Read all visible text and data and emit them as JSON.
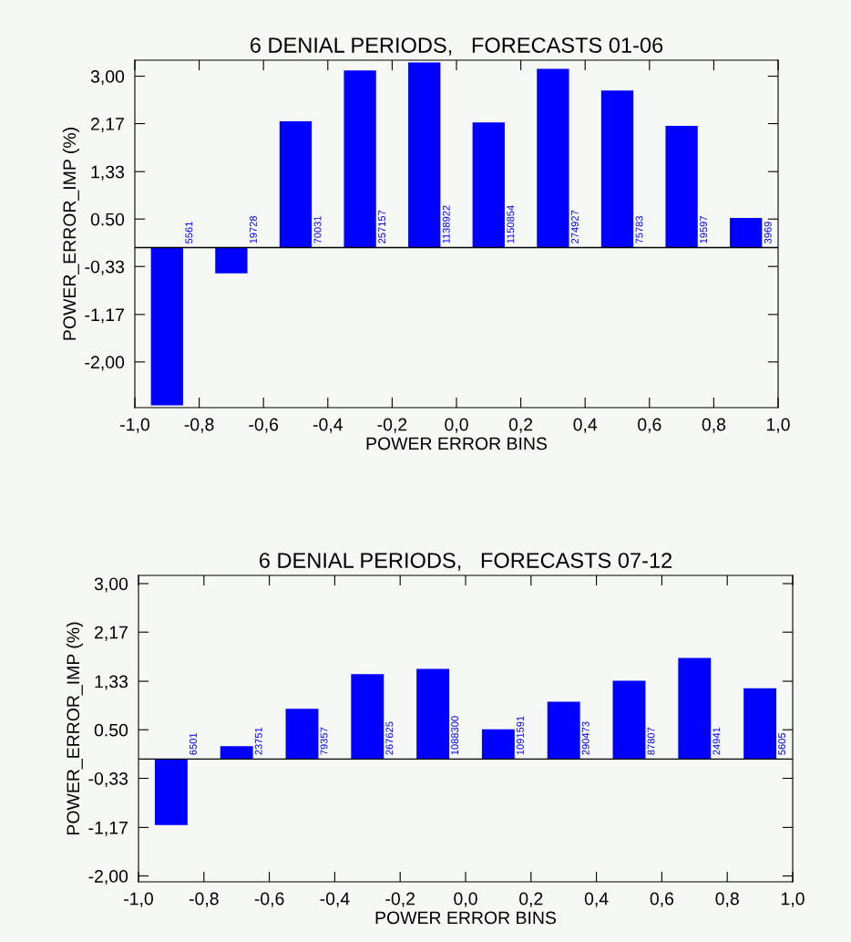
{
  "chart_data": [
    {
      "type": "bar",
      "title": "6 DENIAL PERIODS,   FORECASTS 01-06",
      "xlabel": "POWER ERROR BINS",
      "ylabel": "POWER_ERROR_IMP (%)",
      "x": [
        -0.9,
        -0.7,
        -0.5,
        -0.3,
        -0.1,
        0.1,
        0.3,
        0.5,
        0.7,
        0.9
      ],
      "values": [
        -2.76,
        -0.45,
        2.21,
        3.1,
        3.24,
        2.19,
        3.13,
        2.75,
        2.13,
        0.52
      ],
      "color": "#0000ff",
      "xlim": [
        -1.0,
        1.0
      ],
      "xticks": [
        {
          "value": -1.0,
          "label": "-1,0"
        },
        {
          "value": -0.8,
          "label": "-0,8"
        },
        {
          "value": -0.6,
          "label": "-0,6"
        },
        {
          "value": -0.4,
          "label": "-0,4"
        },
        {
          "value": -0.2,
          "label": "-0,2"
        },
        {
          "value": 0.0,
          "label": "0,0"
        },
        {
          "value": 0.2,
          "label": "0,2"
        },
        {
          "value": 0.4,
          "label": "0,4"
        },
        {
          "value": 0.6,
          "label": "0,6"
        },
        {
          "value": 0.8,
          "label": "0,8"
        },
        {
          "value": 1.0,
          "label": "1,0"
        }
      ],
      "ylim": [
        -2.8,
        3.28
      ],
      "yticks": [
        {
          "value": -2.0,
          "label": "-2,00"
        },
        {
          "value": -1.17,
          "label": "-1,17"
        },
        {
          "value": -0.33,
          "label": "-0,33"
        },
        {
          "value": 0.5,
          "label": "0.50"
        },
        {
          "value": 1.33,
          "label": "1,33"
        },
        {
          "value": 2.17,
          "label": "2,17"
        },
        {
          "value": 3.0,
          "label": "3,00"
        }
      ],
      "ref_lines": [
        {
          "axis": "y",
          "value": 0,
          "color": "#000000"
        }
      ],
      "annotations": [
        {
          "text": "5561",
          "x": -0.9,
          "y": 0
        },
        {
          "text": "19728",
          "x": -0.7,
          "y": 0
        },
        {
          "text": "70031",
          "x": -0.5,
          "y": 0
        },
        {
          "text": "257157",
          "x": -0.3,
          "y": 0
        },
        {
          "text": "1138922",
          "x": -0.1,
          "y": 0
        },
        {
          "text": "1150854",
          "x": 0.1,
          "y": 0
        },
        {
          "text": "274927",
          "x": 0.3,
          "y": 0
        },
        {
          "text": "75783",
          "x": 0.5,
          "y": 0
        },
        {
          "text": "19597",
          "x": 0.7,
          "y": 0
        },
        {
          "text": "3969",
          "x": 0.9,
          "y": 0
        }
      ]
    },
    {
      "type": "bar",
      "title": "6 DENIAL PERIODS,   FORECASTS 07-12",
      "xlabel": "POWER ERROR BINS",
      "ylabel": "POWER_ERROR_IMP (%)",
      "x": [
        -0.9,
        -0.7,
        -0.5,
        -0.3,
        -0.1,
        0.1,
        0.3,
        0.5,
        0.7,
        0.9
      ],
      "values": [
        -1.13,
        0.22,
        0.86,
        1.45,
        1.54,
        0.51,
        0.98,
        1.34,
        1.73,
        1.21
      ],
      "color": "#0000ff",
      "xlim": [
        -1.0,
        1.0
      ],
      "xticks": [
        {
          "value": -1.0,
          "label": "-1,0"
        },
        {
          "value": -0.8,
          "label": "-0,8"
        },
        {
          "value": -0.6,
          "label": "-0,6"
        },
        {
          "value": -0.4,
          "label": "-0,4"
        },
        {
          "value": -0.2,
          "label": "-0,2"
        },
        {
          "value": 0.0,
          "label": "0,0"
        },
        {
          "value": 0.2,
          "label": "0,2"
        },
        {
          "value": 0.4,
          "label": "0,4"
        },
        {
          "value": 0.6,
          "label": "0,6"
        },
        {
          "value": 0.8,
          "label": "0,8"
        },
        {
          "value": 1.0,
          "label": "1,0"
        }
      ],
      "ylim": [
        -2.1,
        3.14
      ],
      "yticks": [
        {
          "value": -2.0,
          "label": "-2,00"
        },
        {
          "value": -1.17,
          "label": "-1,17"
        },
        {
          "value": -0.33,
          "label": "-0,33"
        },
        {
          "value": 0.5,
          "label": "0.50"
        },
        {
          "value": 1.33,
          "label": "1,33"
        },
        {
          "value": 2.17,
          "label": "2,17"
        },
        {
          "value": 3.0,
          "label": "3,00"
        }
      ],
      "ref_lines": [
        {
          "axis": "y",
          "value": 0,
          "color": "#000000"
        }
      ],
      "annotations": [
        {
          "text": "6501",
          "x": -0.9,
          "y": 0
        },
        {
          "text": "23751",
          "x": -0.7,
          "y": 0
        },
        {
          "text": "79357",
          "x": -0.5,
          "y": 0
        },
        {
          "text": "267625",
          "x": -0.3,
          "y": 0
        },
        {
          "text": "1088300",
          "x": -0.1,
          "y": 0
        },
        {
          "text": "1091591",
          "x": 0.1,
          "y": 0
        },
        {
          "text": "290473",
          "x": 0.3,
          "y": 0
        },
        {
          "text": "87807",
          "x": 0.5,
          "y": 0
        },
        {
          "text": "24941",
          "x": 0.7,
          "y": 0
        },
        {
          "text": "5605",
          "x": 0.9,
          "y": 0
        }
      ]
    }
  ]
}
